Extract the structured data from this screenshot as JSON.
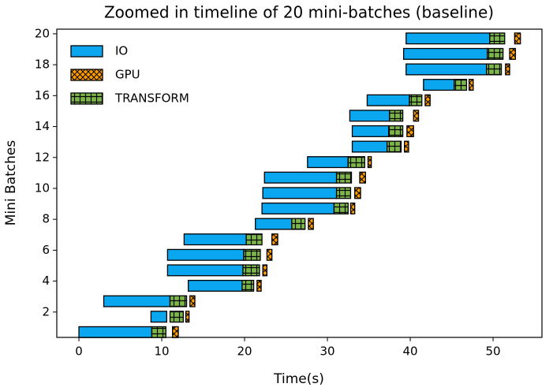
{
  "chart_data": {
    "type": "broken_barh",
    "title": "Zoomed in timeline of 20 mini-batches (baseline)",
    "xlabel": "Time(s)",
    "ylabel": "Mini Batches",
    "y": [
      1,
      2,
      3,
      4,
      5,
      6,
      7,
      8,
      9,
      10,
      11,
      12,
      13,
      14,
      15,
      16,
      17,
      18,
      19,
      20
    ],
    "series": [
      {
        "name": "IO",
        "color": "#0aa6f0",
        "hatch": null,
        "start": [
          0,
          8.7,
          3.0,
          13.2,
          10.7,
          10.7,
          12.7,
          21.3,
          22.1,
          22.2,
          22.4,
          27.6,
          33.0,
          33.0,
          32.7,
          34.8,
          41.6,
          39.5,
          39.2,
          39.5
        ],
        "duration": [
          8.8,
          1.9,
          8.0,
          6.6,
          9.1,
          9.2,
          7.5,
          4.4,
          8.7,
          8.9,
          8.7,
          4.9,
          4.2,
          4.4,
          4.8,
          5.1,
          3.7,
          9.7,
          10.1,
          10.1
        ]
      },
      {
        "name": "GPU",
        "color": "#ff9d00",
        "hatch": "xxx",
        "start": [
          11.3,
          12.9,
          13.4,
          21.5,
          22.2,
          22.7,
          23.3,
          27.7,
          32.8,
          33.3,
          33.9,
          34.9,
          39.3,
          39.6,
          40.4,
          41.8,
          47.1,
          51.5,
          52.0,
          52.6
        ],
        "duration": [
          0.7,
          0.4,
          0.6,
          0.5,
          0.5,
          0.6,
          0.7,
          0.6,
          0.5,
          0.7,
          0.7,
          0.4,
          0.5,
          0.8,
          0.6,
          0.6,
          0.5,
          0.5,
          0.7,
          0.7
        ]
      },
      {
        "name": "TRANSFORM",
        "color": "#7ab648",
        "hatch": "++",
        "start": [
          8.8,
          11.0,
          11.0,
          19.7,
          19.8,
          19.9,
          20.2,
          25.7,
          30.8,
          31.1,
          31.1,
          32.5,
          37.2,
          37.4,
          37.5,
          39.9,
          45.3,
          49.2,
          49.3,
          49.6
        ],
        "duration": [
          1.7,
          1.6,
          2.0,
          1.4,
          2.0,
          2.0,
          1.9,
          1.6,
          1.7,
          1.7,
          1.8,
          2.0,
          1.7,
          1.7,
          1.6,
          1.5,
          1.5,
          1.8,
          1.9,
          1.8
        ]
      }
    ],
    "xlim": [
      -2.67,
      55.9
    ],
    "ylim": [
      0.36,
      20.3
    ],
    "xticks": [
      0,
      10,
      20,
      30,
      40,
      50
    ],
    "yticks": [
      2,
      4,
      6,
      8,
      10,
      12,
      14,
      16,
      18,
      20
    ],
    "grid": false,
    "legend": "upper left"
  }
}
